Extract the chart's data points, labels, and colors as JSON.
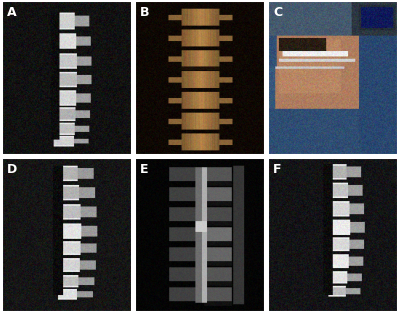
{
  "figsize": [
    4.0,
    3.13
  ],
  "dpi": 100,
  "layout": {
    "rows": 2,
    "cols": 3
  },
  "panels": [
    "A",
    "B",
    "C",
    "D",
    "E",
    "F"
  ],
  "border_color": "#ffffff",
  "border_width": 1.5,
  "label_color": "#ffffff",
  "label_fontsize": 9,
  "label_fontweight": "bold",
  "wspace": 0.02,
  "hspace": 0.02
}
